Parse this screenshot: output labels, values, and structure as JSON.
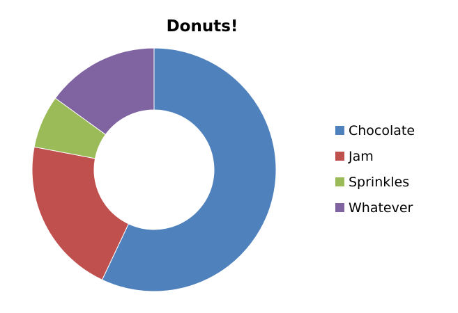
{
  "chart_data": {
    "type": "pie",
    "variant": "donut",
    "title": "Donuts!",
    "legend_position": "right",
    "start": "top",
    "direction": "clockwise",
    "categories": [
      "Chocolate",
      "Jam",
      "Sprinkles",
      "Whatever"
    ],
    "values": [
      57,
      21,
      7,
      15
    ],
    "value_unit": "percent",
    "colors": [
      "#4F81BD",
      "#C0504D",
      "#9BBB59",
      "#8064A2"
    ]
  }
}
